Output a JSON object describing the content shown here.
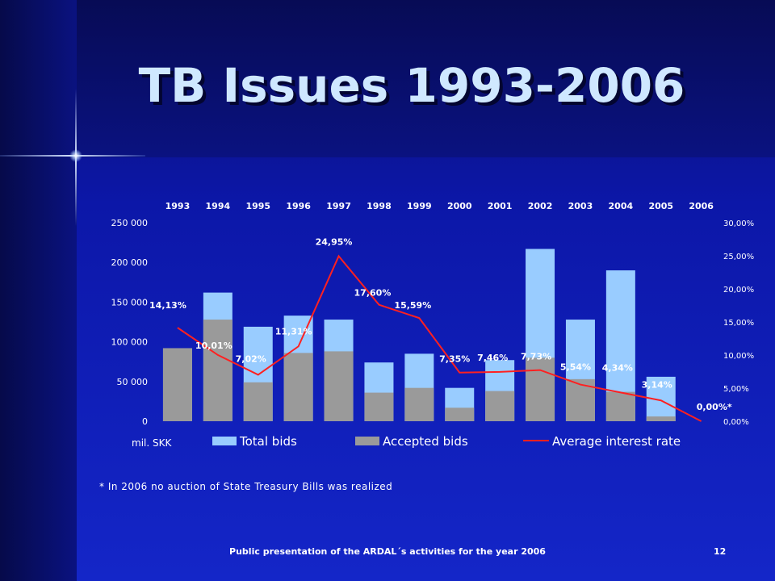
{
  "title": "TB Issues 1993-2006",
  "footer": {
    "text": "Public presentation  of the ARDAL´s activities for the year 2006",
    "slide_number": "12"
  },
  "chart_data": {
    "type": "bar",
    "categories": [
      "1993",
      "1994",
      "1995",
      "1996",
      "1997",
      "1998",
      "1999",
      "2000",
      "2001",
      "2002",
      "2003",
      "2004",
      "2005",
      "2006"
    ],
    "series": [
      {
        "name": "Total bids",
        "kind": "bar",
        "color": "#99ccff",
        "values": [
          92000,
          162000,
          119000,
          133000,
          128000,
          74000,
          85000,
          42000,
          77000,
          217000,
          128000,
          190000,
          56000,
          0
        ]
      },
      {
        "name": "Accepted bids",
        "kind": "bar",
        "color": "#9a9a9a",
        "values": [
          92000,
          128000,
          49000,
          86000,
          88000,
          36000,
          42000,
          17000,
          38000,
          80000,
          53000,
          37000,
          6000,
          0
        ]
      },
      {
        "name": "Average interest rate",
        "kind": "line",
        "axis": "right",
        "color": "#ff2020",
        "values": [
          14.13,
          10.01,
          7.02,
          11.31,
          24.95,
          17.6,
          15.59,
          7.35,
          7.46,
          7.73,
          5.54,
          4.34,
          3.14,
          0.0
        ]
      }
    ],
    "rate_labels": [
      "14,13%",
      "10,01%",
      "7,02%",
      "11,31%",
      "24,95%",
      "17,60%",
      "15,59%",
      "7,35%",
      "7,46%",
      "7,73%",
      "5,54%",
      "4,34%",
      "3,14%",
      "0,00%*"
    ],
    "y_left": {
      "min": 0,
      "max": 250000,
      "ticks": [
        "0",
        "50 000",
        "100 000",
        "150 000",
        "200 000",
        "250 000"
      ],
      "unit_label": "mil. SKK"
    },
    "y_right": {
      "min": 0,
      "max": 30,
      "ticks": [
        "0,00%",
        "5,00%",
        "10,00%",
        "15,00%",
        "20,00%",
        "25,00%",
        "30,00%"
      ]
    },
    "legend": [
      "Total bids",
      "Accepted bids",
      "Average interest rate"
    ],
    "footnote": "* In 2006 no auction of State Treasury Bills was realized",
    "grid": false,
    "legend_position": "bottom"
  }
}
